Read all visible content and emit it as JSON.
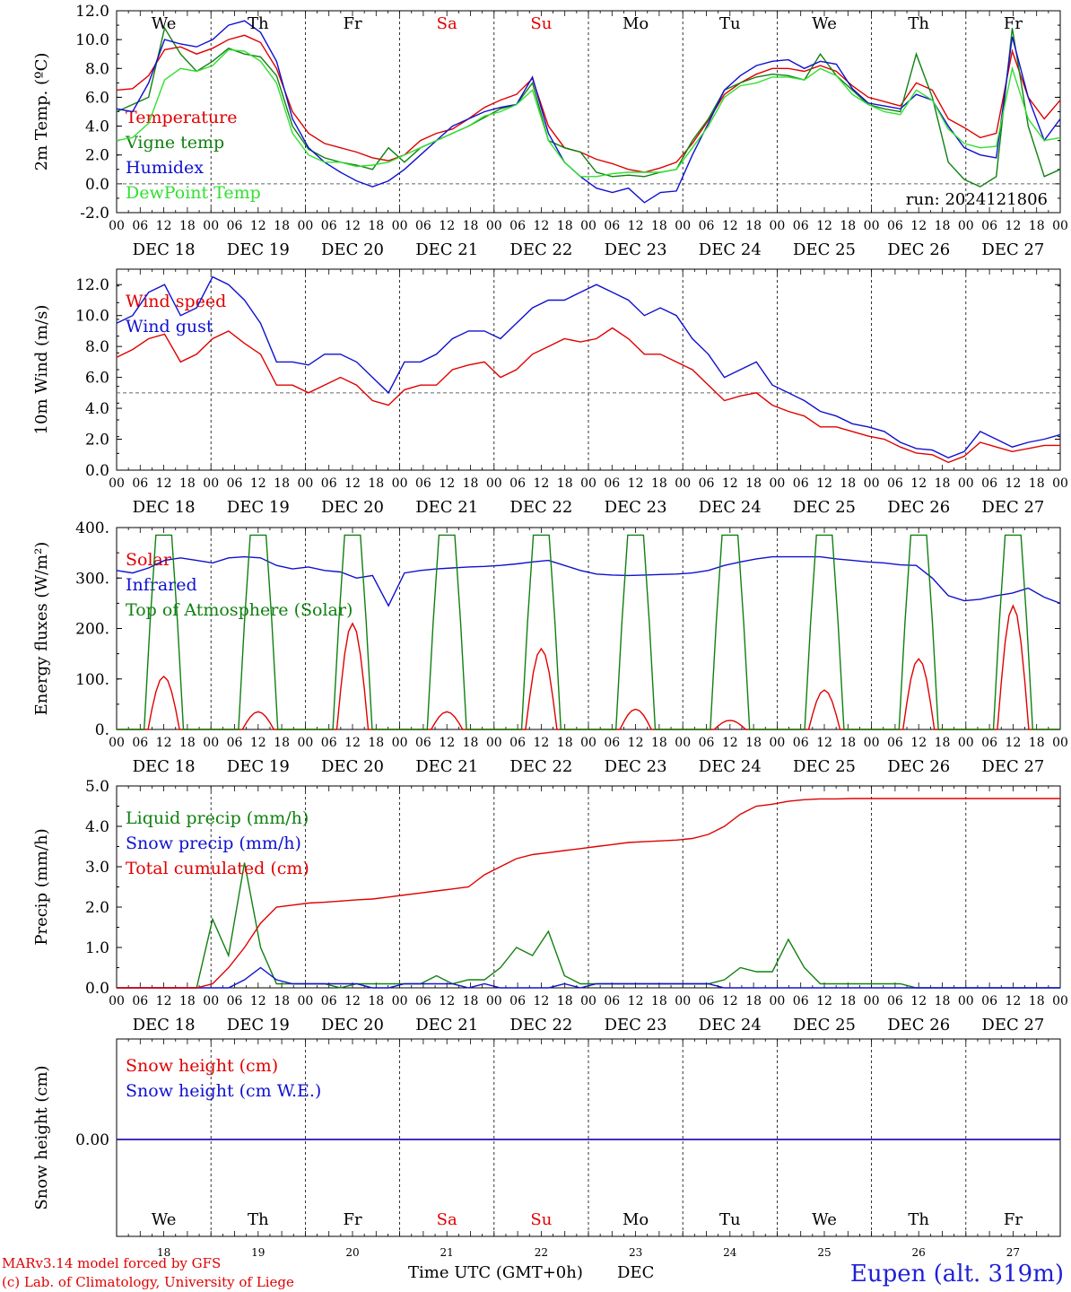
{
  "chart_data": [
    {
      "type": "line",
      "ylabel": "2m Temp. (ºC)",
      "ylim": [
        -2,
        12
      ],
      "yticks": [
        "-2.0",
        "0.0",
        "2.0",
        "4.0",
        "6.0",
        "8.0",
        "10.0",
        "12.0"
      ],
      "reference_line": 0,
      "run_label": "run: 2024121806",
      "series": [
        {
          "name": "Temperature",
          "color": "#e00000",
          "values": [
            6.5,
            6.6,
            7.5,
            9.3,
            9.5,
            9.0,
            9.4,
            10.0,
            10.3,
            9.8,
            8.0,
            5.0,
            3.5,
            2.8,
            2.5,
            2.2,
            1.8,
            1.6,
            2.0,
            3.0,
            3.5,
            3.8,
            4.5,
            5.3,
            5.8,
            6.2,
            7.3,
            4.0,
            2.5,
            2.2,
            1.7,
            1.4,
            1.0,
            0.8,
            1.1,
            1.5,
            2.8,
            4.4,
            6.2,
            7.0,
            7.6,
            8.0,
            8.0,
            7.8,
            8.2,
            7.8,
            6.8,
            6.0,
            5.7,
            5.4,
            7.0,
            6.5,
            4.5,
            3.9,
            3.2,
            3.5,
            9.2,
            6.0,
            4.5,
            5.8
          ]
        },
        {
          "name": "Vigne temp",
          "color": "#108010",
          "values": [
            5.0,
            5.5,
            6.0,
            10.8,
            9.0,
            7.8,
            8.5,
            9.4,
            9.0,
            8.8,
            7.5,
            4.0,
            2.4,
            1.8,
            1.5,
            1.3,
            1.0,
            2.5,
            1.5,
            2.5,
            3.0,
            3.5,
            4.0,
            4.6,
            5.2,
            5.5,
            7.0,
            3.0,
            2.5,
            2.2,
            0.8,
            0.5,
            0.6,
            0.5,
            0.8,
            1.0,
            3.0,
            4.5,
            6.5,
            7.0,
            7.4,
            7.6,
            7.5,
            7.2,
            9.0,
            7.5,
            6.5,
            5.5,
            5.2,
            5.0,
            9.0,
            6.0,
            1.5,
            0.3,
            -0.2,
            0.5,
            10.8,
            4.0,
            0.5,
            1.0
          ]
        },
        {
          "name": "Humidex",
          "color": "#1010d0",
          "values": [
            5.2,
            5.0,
            7.0,
            10.0,
            9.7,
            9.5,
            10.0,
            11.0,
            11.3,
            10.5,
            8.5,
            4.5,
            2.5,
            1.5,
            0.8,
            0.2,
            -0.2,
            0.2,
            1.0,
            2.0,
            3.0,
            4.0,
            4.5,
            5.0,
            5.3,
            5.5,
            7.4,
            3.5,
            1.5,
            0.5,
            -0.3,
            -0.6,
            -0.3,
            -1.3,
            -0.6,
            -0.5,
            2.0,
            4.2,
            6.5,
            7.5,
            8.2,
            8.5,
            8.6,
            8.0,
            8.5,
            8.3,
            6.6,
            5.6,
            5.4,
            5.2,
            6.2,
            5.8,
            4.0,
            2.5,
            2.0,
            1.8,
            10.2,
            6.0,
            3.0,
            4.5
          ]
        },
        {
          "name": "DewPoint Temp",
          "color": "#30e030",
          "values": [
            3.0,
            3.2,
            4.2,
            7.2,
            8.0,
            7.8,
            8.2,
            9.3,
            9.2,
            8.5,
            7.0,
            3.5,
            2.0,
            1.5,
            1.5,
            1.2,
            1.3,
            1.5,
            2.0,
            2.5,
            3.0,
            3.5,
            4.0,
            4.7,
            5.0,
            5.5,
            6.5,
            3.0,
            1.5,
            0.5,
            0.5,
            0.7,
            0.8,
            0.8,
            0.8,
            1.0,
            2.5,
            4.0,
            6.0,
            6.8,
            7.0,
            7.4,
            7.4,
            7.2,
            8.0,
            7.5,
            6.2,
            5.5,
            5.0,
            4.8,
            6.5,
            5.8,
            3.8,
            2.8,
            2.5,
            2.6,
            8.0,
            4.5,
            3.0,
            3.2
          ]
        }
      ]
    },
    {
      "type": "line",
      "ylabel": "10m Wind (m/s)",
      "ylim": [
        0,
        13
      ],
      "yticks": [
        "0.0",
        "2.0",
        "4.0",
        "6.0",
        "8.0",
        "10.0",
        "12.0"
      ],
      "reference_line": 5,
      "series": [
        {
          "name": "Wind speed",
          "color": "#e00000",
          "values": [
            7.3,
            7.8,
            8.5,
            8.8,
            7.0,
            7.5,
            8.5,
            9.0,
            8.2,
            7.5,
            5.5,
            5.5,
            5.0,
            5.5,
            6.0,
            5.5,
            4.5,
            4.2,
            5.2,
            5.5,
            5.5,
            6.5,
            6.8,
            7.0,
            6.0,
            6.5,
            7.5,
            8.0,
            8.5,
            8.3,
            8.5,
            9.2,
            8.5,
            7.5,
            7.5,
            7.0,
            6.5,
            5.5,
            4.5,
            4.8,
            5.0,
            4.2,
            3.8,
            3.5,
            2.8,
            2.8,
            2.5,
            2.2,
            2.0,
            1.5,
            1.1,
            1.0,
            0.5,
            0.9,
            1.8,
            1.5,
            1.2,
            1.4,
            1.6,
            1.6
          ]
        },
        {
          "name": "Wind gust",
          "color": "#1010d0",
          "values": [
            9.5,
            10.0,
            11.5,
            12.0,
            10.0,
            10.5,
            12.5,
            12.0,
            11.0,
            9.5,
            7.0,
            7.0,
            6.8,
            7.5,
            7.5,
            7.0,
            6.0,
            5.0,
            7.0,
            7.0,
            7.5,
            8.5,
            9.0,
            9.0,
            8.5,
            9.5,
            10.5,
            11.0,
            11.0,
            11.5,
            12.0,
            11.5,
            11.0,
            10.0,
            10.5,
            10.0,
            8.5,
            7.5,
            6.0,
            6.5,
            7.0,
            5.5,
            5.0,
            4.5,
            3.8,
            3.5,
            3.0,
            2.8,
            2.5,
            1.8,
            1.4,
            1.3,
            0.8,
            1.2,
            2.5,
            2.0,
            1.5,
            1.8,
            2.0,
            2.3
          ]
        }
      ]
    },
    {
      "type": "line",
      "ylabel": "Energy fluxes (W/m²)",
      "ylim": [
        0,
        400
      ],
      "yticks": [
        "0.",
        "100.",
        "200.",
        "300.",
        "400."
      ],
      "series": [
        {
          "name": "Solar",
          "color": "#e00000",
          "peaks": [
            105,
            35,
            210,
            35,
            160,
            40,
            18,
            78,
            140,
            245
          ]
        },
        {
          "name": "Infrared",
          "color": "#1010d0",
          "values": [
            315,
            310,
            320,
            335,
            340,
            335,
            330,
            340,
            342,
            340,
            325,
            318,
            322,
            315,
            312,
            300,
            305,
            245,
            310,
            315,
            318,
            320,
            322,
            323,
            325,
            328,
            332,
            335,
            325,
            315,
            308,
            306,
            305,
            306,
            307,
            308,
            310,
            315,
            325,
            332,
            338,
            342,
            342,
            342,
            342,
            338,
            335,
            332,
            330,
            326,
            325,
            300,
            265,
            255,
            258,
            265,
            270,
            280,
            262,
            250
          ]
        },
        {
          "name": "Top of Atmosphere (Solar)",
          "color": "#108010",
          "peak": 385
        }
      ]
    },
    {
      "type": "line",
      "ylabel": "Precip (mm/h)",
      "ylim": [
        0,
        5
      ],
      "yticks": [
        "0.0",
        "1.0",
        "2.0",
        "3.0",
        "4.0",
        "5.0"
      ],
      "series": [
        {
          "name": "Liquid precip (mm/h)",
          "color": "#108010",
          "values": [
            0,
            0,
            0,
            0,
            0,
            0,
            1.7,
            0.8,
            3.1,
            1.0,
            0.1,
            0.1,
            0.1,
            0.1,
            0.0,
            0.1,
            0.1,
            0.1,
            0.1,
            0.1,
            0.3,
            0.1,
            0.2,
            0.2,
            0.5,
            1.0,
            0.8,
            1.4,
            0.3,
            0.1,
            0.1,
            0.1,
            0.1,
            0.1,
            0.1,
            0.1,
            0.1,
            0.1,
            0.2,
            0.5,
            0.4,
            0.4,
            1.2,
            0.5,
            0.1,
            0.1,
            0.1,
            0.1,
            0.1,
            0.1,
            0.0,
            0,
            0,
            0,
            0,
            0,
            0,
            0,
            0,
            0
          ]
        },
        {
          "name": "Snow precip (mm/h)",
          "color": "#1010d0",
          "values": [
            0,
            0,
            0,
            0,
            0,
            0,
            0,
            0,
            0.2,
            0.5,
            0.2,
            0.1,
            0.1,
            0.1,
            0.1,
            0.1,
            0,
            0,
            0.1,
            0.1,
            0.1,
            0.1,
            0,
            0.1,
            0,
            0,
            0,
            0,
            0.1,
            0,
            0.1,
            0.1,
            0.1,
            0.1,
            0.1,
            0.1,
            0.1,
            0.1,
            0,
            0,
            0,
            0,
            0,
            0,
            0,
            0,
            0,
            0,
            0,
            0,
            0,
            0,
            0,
            0,
            0,
            0,
            0,
            0,
            0,
            0
          ]
        },
        {
          "name": "Total cumulated (cm)",
          "color": "#e00000",
          "values": [
            0,
            0,
            0,
            0,
            0,
            0,
            0.1,
            0.5,
            1.0,
            1.6,
            2.0,
            2.05,
            2.1,
            2.12,
            2.15,
            2.18,
            2.2,
            2.25,
            2.3,
            2.35,
            2.4,
            2.45,
            2.5,
            2.8,
            3.0,
            3.2,
            3.3,
            3.35,
            3.4,
            3.45,
            3.5,
            3.55,
            3.6,
            3.62,
            3.64,
            3.66,
            3.7,
            3.8,
            4.0,
            4.3,
            4.5,
            4.55,
            4.62,
            4.66,
            4.68,
            4.68,
            4.69,
            4.69,
            4.69,
            4.69,
            4.69,
            4.69,
            4.69,
            4.69,
            4.69,
            4.69,
            4.69,
            4.69,
            4.69,
            4.69
          ]
        }
      ]
    },
    {
      "type": "line",
      "ylabel": "Snow height (cm)",
      "yticks": [
        "0.00"
      ],
      "series": [
        {
          "name": "Snow height (cm)",
          "color": "#e00000",
          "values": [
            0
          ]
        },
        {
          "name": "Snow height (cm W.E.)",
          "color": "#1010d0",
          "values": [
            0
          ]
        }
      ]
    }
  ],
  "days": [
    {
      "abbr": "We",
      "date": "DEC 18",
      "num": "18",
      "color": "#000000"
    },
    {
      "abbr": "Th",
      "date": "DEC 19",
      "num": "19",
      "color": "#000000"
    },
    {
      "abbr": "Fr",
      "date": "DEC 20",
      "num": "20",
      "color": "#000000"
    },
    {
      "abbr": "Sa",
      "date": "DEC 21",
      "num": "21",
      "color": "#e00000"
    },
    {
      "abbr": "Su",
      "date": "DEC 22",
      "num": "22",
      "color": "#e00000"
    },
    {
      "abbr": "Mo",
      "date": "DEC 23",
      "num": "23",
      "color": "#000000"
    },
    {
      "abbr": "Tu",
      "date": "DEC 24",
      "num": "24",
      "color": "#000000"
    },
    {
      "abbr": "We",
      "date": "DEC 25",
      "num": "25",
      "color": "#000000"
    },
    {
      "abbr": "Th",
      "date": "DEC 26",
      "num": "26",
      "color": "#000000"
    },
    {
      "abbr": "Fr",
      "date": "DEC 27",
      "num": "27",
      "color": "#000000"
    }
  ],
  "hour_labels": [
    "00",
    "06",
    "12",
    "18"
  ],
  "final_hour_label": "00",
  "footer": {
    "model_line1": "MARv3.14 model forced by GFS",
    "model_line2": "(c) Lab. of Climatology, University of Liege",
    "xlabel": "Time UTC (GMT+0h)",
    "month": "DEC",
    "station": "Eupen (alt. 319m)"
  }
}
